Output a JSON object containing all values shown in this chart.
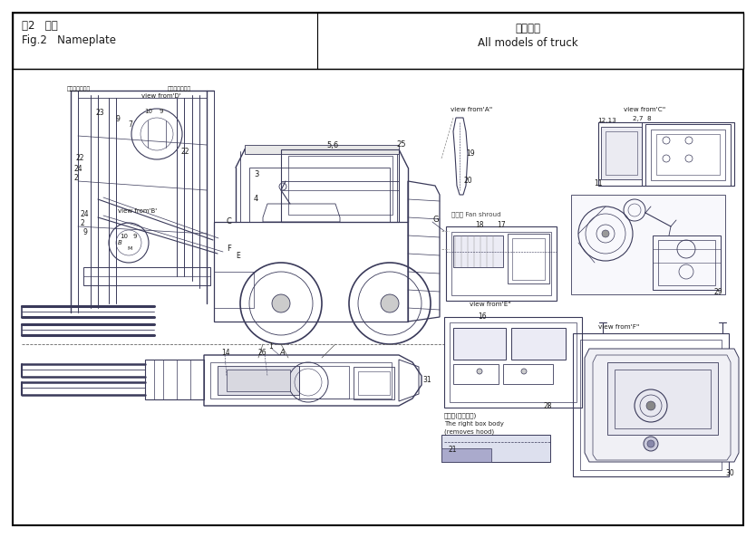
{
  "bg": "#ffffff",
  "lc": "#3a3a5a",
  "tc": "#1a1a1a",
  "bc": "#000000",
  "fig_w": 8.34,
  "fig_h": 5.94,
  "dpi": 100,
  "title_cn": "图2   标示",
  "title_en": "Fig.2   Nameplate",
  "sub_cn": "全部车型",
  "sub_en": "All models of truck",
  "label_mast_out": "橡条外挂前门条",
  "label_mast_in": "橡条内置前门条",
  "label_fan": "风冷的 Fan shroud",
  "label_right_box_cn": "右筱体(去掉机罩)",
  "label_right_box_en1": "The right box body",
  "label_right_box_en2": "(removes hood)"
}
